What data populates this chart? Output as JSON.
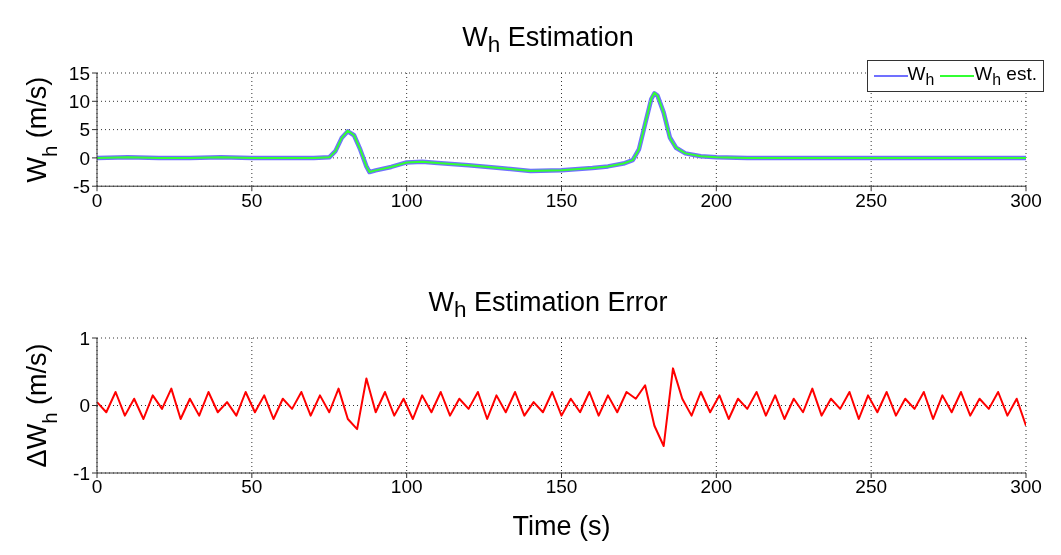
{
  "chart_data": [
    {
      "type": "line",
      "title": "W$_{h}$ Estimation",
      "ylabel": "W$_{h}$ (m/s)",
      "x": [
        0,
        10,
        20,
        30,
        40,
        50,
        60,
        70,
        75,
        77,
        79,
        81,
        83,
        85,
        87,
        88,
        90,
        95,
        100,
        105,
        110,
        120,
        130,
        140,
        150,
        160,
        165,
        170,
        173,
        175,
        177,
        179,
        180,
        181,
        183,
        185,
        187,
        190,
        195,
        200,
        210,
        220,
        240,
        260,
        280,
        300
      ],
      "series": [
        {
          "name": "W$_{h}$",
          "color": "#7070ff",
          "values": [
            0,
            0.1,
            0,
            0,
            0.1,
            0,
            0,
            0,
            0.1,
            1.2,
            3.5,
            4.7,
            4,
            1.5,
            -1.5,
            -2.5,
            -2.2,
            -1.6,
            -0.8,
            -0.7,
            -0.9,
            -1.3,
            -1.8,
            -2.3,
            -2.2,
            -1.8,
            -1.5,
            -1,
            -0.4,
            1.5,
            6,
            10.4,
            11.4,
            11,
            8,
            3.6,
            1.8,
            0.8,
            0.3,
            0.1,
            0,
            0,
            0,
            0,
            0,
            0
          ]
        },
        {
          "name": "W$_{h}$ est.",
          "color": "#33ff33",
          "values": [
            0,
            0.1,
            0,
            0,
            0.1,
            0,
            0,
            0,
            0.1,
            1.2,
            3.5,
            4.8,
            4,
            1.5,
            -1.5,
            -2.5,
            -2.2,
            -1.6,
            -0.8,
            -0.7,
            -0.9,
            -1.3,
            -1.8,
            -2.3,
            -2.2,
            -1.8,
            -1.5,
            -1,
            -0.4,
            1.5,
            6,
            10.5,
            11.5,
            11,
            8,
            3.5,
            1.8,
            0.8,
            0.3,
            0.1,
            0,
            0,
            0,
            0,
            0,
            0
          ]
        }
      ],
      "xlim": [
        0,
        300
      ],
      "xticks": [
        0,
        50,
        100,
        150,
        200,
        250,
        300
      ],
      "ylim": [
        -5,
        15
      ],
      "yticks": [
        -5,
        0,
        5,
        10,
        15
      ],
      "grid": true,
      "legend": "top right"
    },
    {
      "type": "line",
      "title": "W$_{h}$ Estimation Error",
      "xlabel": "Time (s)",
      "ylabel": "ΔW$_{h}$ (m/s)",
      "x": [
        0,
        3,
        6,
        9,
        12,
        15,
        18,
        21,
        24,
        27,
        30,
        33,
        36,
        39,
        42,
        45,
        48,
        51,
        54,
        57,
        60,
        63,
        66,
        69,
        72,
        75,
        78,
        81,
        84,
        87,
        90,
        93,
        96,
        99,
        102,
        105,
        108,
        111,
        114,
        117,
        120,
        123,
        126,
        129,
        132,
        135,
        138,
        141,
        144,
        147,
        150,
        153,
        156,
        159,
        162,
        165,
        168,
        171,
        174,
        177,
        180,
        183,
        186,
        189,
        192,
        195,
        198,
        201,
        204,
        207,
        210,
        213,
        216,
        219,
        222,
        225,
        228,
        231,
        234,
        237,
        240,
        243,
        246,
        249,
        252,
        255,
        258,
        261,
        264,
        267,
        270,
        273,
        276,
        279,
        282,
        285,
        288,
        291,
        294,
        297,
        300
      ],
      "series": [
        {
          "color": "#ff0000",
          "values": [
            0.05,
            -0.1,
            0.2,
            -0.15,
            0.1,
            -0.2,
            0.15,
            -0.05,
            0.25,
            -0.2,
            0.1,
            -0.15,
            0.2,
            -0.1,
            0.05,
            -0.15,
            0.2,
            -0.1,
            0.15,
            -0.2,
            0.1,
            -0.05,
            0.2,
            -0.15,
            0.15,
            -0.1,
            0.25,
            -0.2,
            -0.35,
            0.4,
            -0.1,
            0.2,
            -0.15,
            0.1,
            -0.2,
            0.15,
            -0.1,
            0.2,
            -0.15,
            0.1,
            -0.05,
            0.2,
            -0.2,
            0.15,
            -0.1,
            0.2,
            -0.15,
            0.05,
            -0.1,
            0.2,
            -0.15,
            0.1,
            -0.1,
            0.2,
            -0.15,
            0.15,
            -0.1,
            0.2,
            0.1,
            0.3,
            -0.3,
            -0.6,
            0.55,
            0.1,
            -0.15,
            0.2,
            -0.1,
            0.15,
            -0.2,
            0.1,
            -0.05,
            0.2,
            -0.15,
            0.15,
            -0.2,
            0.1,
            -0.1,
            0.25,
            -0.15,
            0.1,
            -0.05,
            0.2,
            -0.2,
            0.15,
            -0.1,
            0.2,
            -0.15,
            0.1,
            -0.05,
            0.2,
            -0.2,
            0.15,
            -0.1,
            0.2,
            -0.15,
            0.1,
            -0.05,
            0.2,
            -0.15,
            0.1,
            -0.3
          ]
        }
      ],
      "xlim": [
        0,
        300
      ],
      "xticks": [
        0,
        50,
        100,
        150,
        200,
        250,
        300
      ],
      "ylim": [
        -1,
        1
      ],
      "yticks": [
        -1,
        0,
        1
      ],
      "grid": true,
      "legend": false
    }
  ]
}
